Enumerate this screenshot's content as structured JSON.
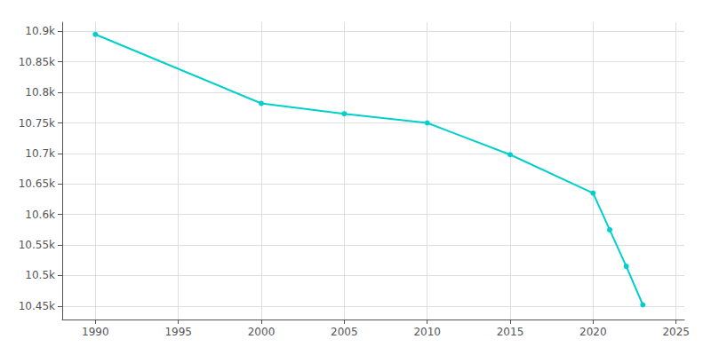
{
  "chart_data": {
    "type": "line",
    "x": [
      1990,
      2000,
      2005,
      2010,
      2015,
      2020,
      2021,
      2022,
      2023
    ],
    "values": [
      10895,
      10782,
      10765,
      10750,
      10698,
      10635,
      10575,
      10515,
      10452
    ],
    "color": "#00d0cc",
    "marker": "circle",
    "xlim": [
      1988.0,
      2025.5
    ],
    "xticks": [
      1990,
      1995,
      2000,
      2005,
      2010,
      2015,
      2020,
      2025
    ],
    "ylim": [
      10428,
      10915
    ],
    "yticks": [
      {
        "value": 10450,
        "label": "10.45k"
      },
      {
        "value": 10500,
        "label": "10.5k"
      },
      {
        "value": 10550,
        "label": "10.55k"
      },
      {
        "value": 10600,
        "label": "10.6k"
      },
      {
        "value": 10650,
        "label": "10.65k"
      },
      {
        "value": 10700,
        "label": "10.7k"
      },
      {
        "value": 10750,
        "label": "10.75k"
      },
      {
        "value": 10800,
        "label": "10.8k"
      },
      {
        "value": 10850,
        "label": "10.85k"
      },
      {
        "value": 10900,
        "label": "10.9k"
      }
    ],
    "grid": true
  }
}
